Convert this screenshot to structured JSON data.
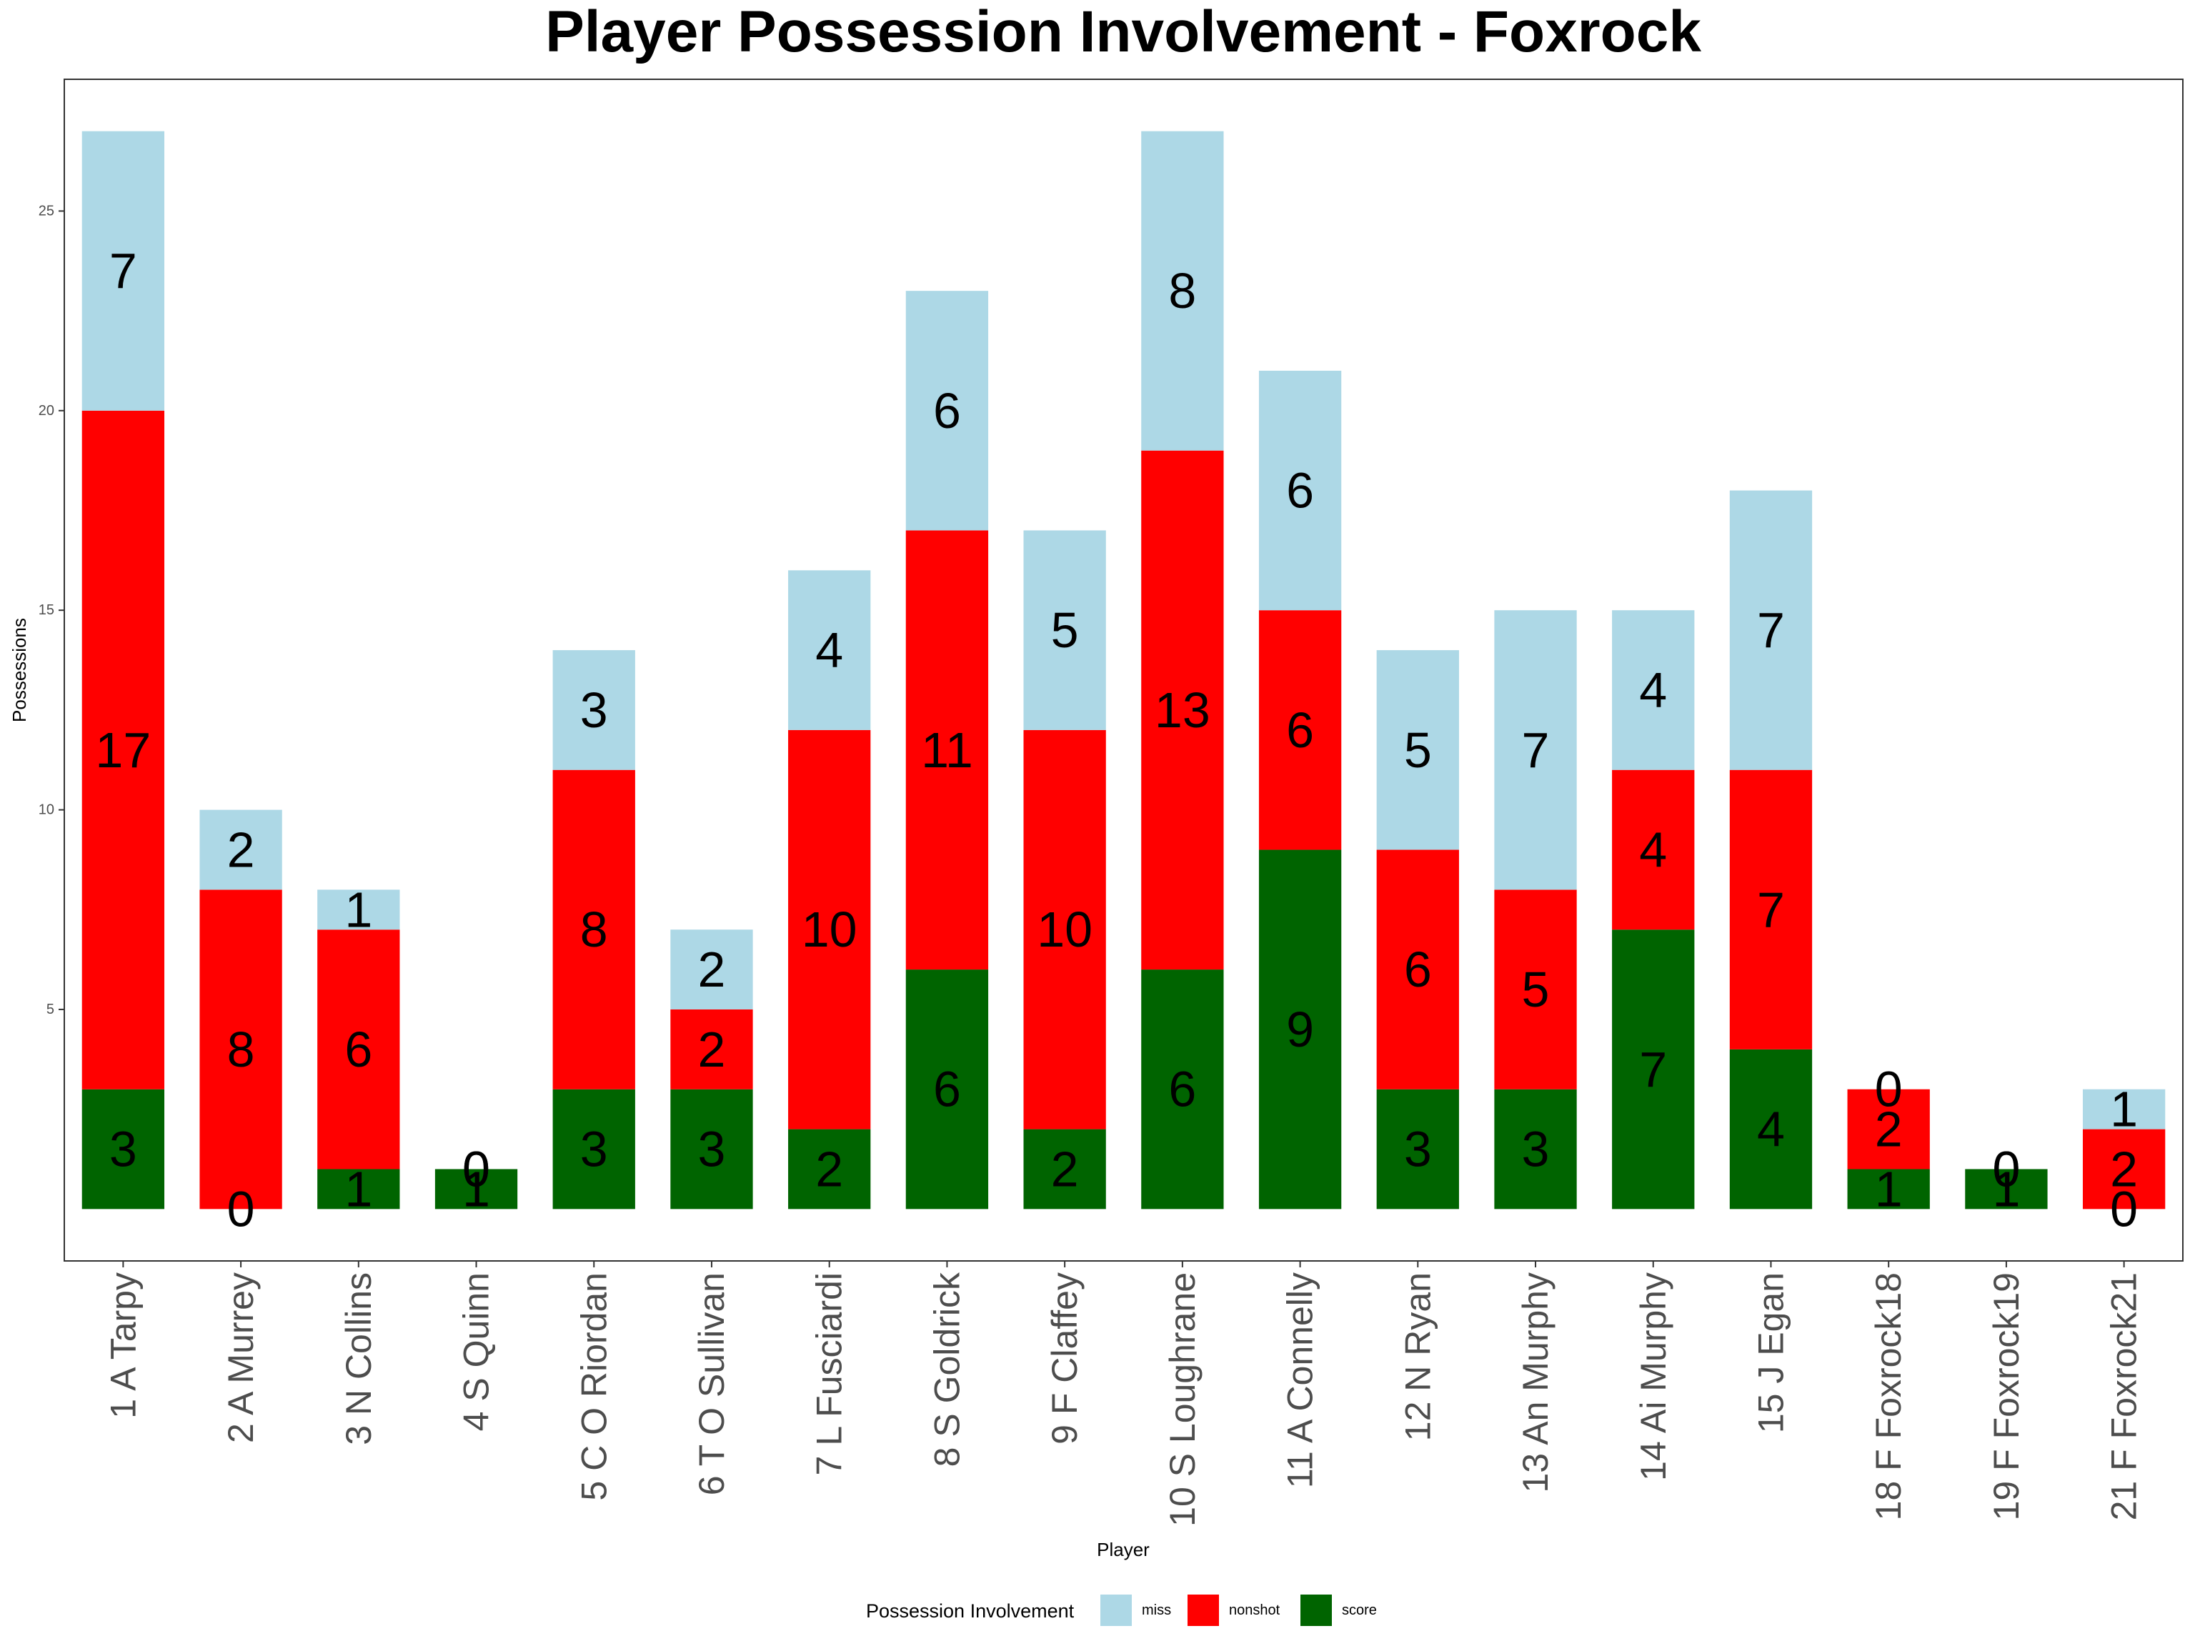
{
  "chart_data": {
    "type": "bar",
    "stacked": true,
    "title": "Player Possession Involvement - Foxrock",
    "xlabel": "Player",
    "ylabel": "Possessions",
    "ylim": [
      -1.3,
      28.3
    ],
    "yticks": [
      5,
      10,
      15,
      20,
      25
    ],
    "grid": false,
    "legend_position": "bottom",
    "legend_title": "Possession Involvement",
    "categories": [
      "1 A Tarpy",
      "2 A Murrey",
      "3 N Collins",
      "4 S Quinn",
      "5 C O Riordan",
      "6 T O Sullivan",
      "7 L Fusciardi",
      "8 S Goldrick",
      "9 F Claffey",
      "10 S Loughrane",
      "11 A Connelly",
      "12 N Ryan",
      "13 An Murphy",
      "14 Ai Murphy",
      "15 J Egan",
      "18 F Foxrock18",
      "19 F Foxrock19",
      "21 F Foxrock21"
    ],
    "series": [
      {
        "name": "score",
        "color": "#006400",
        "values": [
          3,
          0,
          1,
          1,
          3,
          3,
          2,
          6,
          2,
          6,
          9,
          3,
          3,
          7,
          4,
          1,
          1,
          0
        ]
      },
      {
        "name": "nonshot",
        "color": "#ff0000",
        "values": [
          17,
          8,
          6,
          0,
          8,
          2,
          10,
          11,
          10,
          13,
          6,
          6,
          5,
          4,
          7,
          2,
          0,
          2
        ]
      },
      {
        "name": "miss",
        "color": "#add8e6",
        "values": [
          7,
          2,
          1,
          0,
          3,
          2,
          4,
          6,
          5,
          8,
          6,
          5,
          7,
          4,
          7,
          0,
          0,
          1
        ]
      }
    ],
    "legend_order": [
      "miss",
      "nonshot",
      "score"
    ]
  }
}
